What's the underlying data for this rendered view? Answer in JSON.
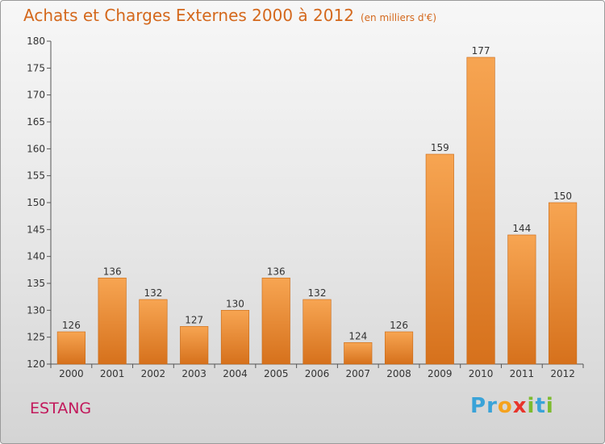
{
  "title": "Achats et Charges Externes 2000 à 2012",
  "subtitle": "(en milliers d'€)",
  "place": "ESTANG",
  "logo": {
    "letters": [
      "P",
      "r",
      "o",
      "x",
      "i",
      "t",
      "i"
    ],
    "colors": [
      "#3aa3d8",
      "#3aa3d8",
      "#f5a21e",
      "#e8342b",
      "#7dbb2f",
      "#3aa3d8",
      "#7dbb2f"
    ]
  },
  "chart_data": {
    "type": "bar",
    "categories": [
      "2000",
      "2001",
      "2002",
      "2003",
      "2004",
      "2005",
      "2006",
      "2007",
      "2008",
      "2009",
      "2010",
      "2011",
      "2012"
    ],
    "values": [
      126,
      136,
      132,
      127,
      130,
      136,
      132,
      124,
      126,
      159,
      177,
      144,
      150
    ],
    "ylim": [
      120,
      180
    ],
    "yticks": [
      120,
      125,
      130,
      135,
      140,
      145,
      150,
      155,
      160,
      165,
      170,
      175,
      180
    ],
    "bar_color": "#f0922e",
    "grid": false
  }
}
